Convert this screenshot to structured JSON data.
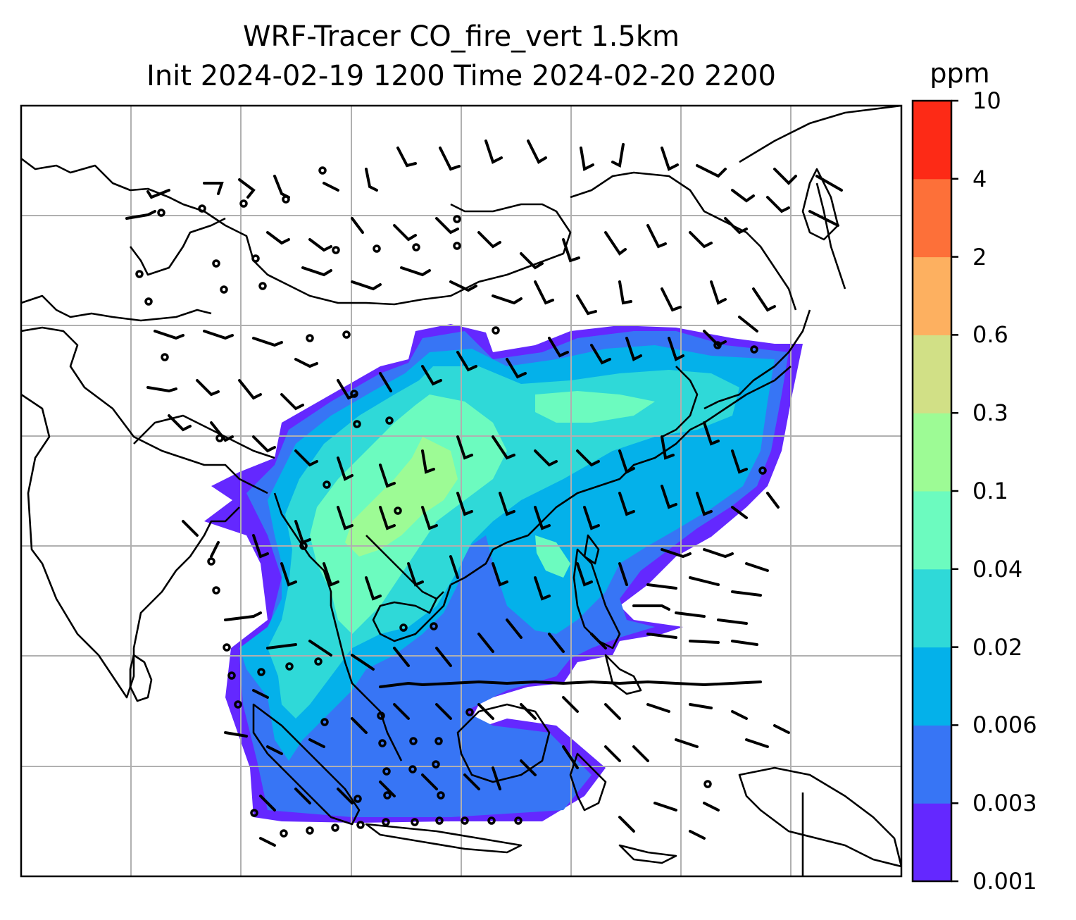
{
  "title": {
    "line1": "WRF-Tracer CO_fire_vert 1.5km",
    "line2": "Init 2024-02-19 1200 Time 2024-02-20 2200"
  },
  "colorbar": {
    "unit": "ppm",
    "levels": [
      "0.001",
      "0.003",
      "0.006",
      "0.02",
      "0.04",
      "0.1",
      "0.3",
      "0.6",
      "2",
      "4",
      "10"
    ],
    "colors": [
      "#6428ff",
      "#3775f5",
      "#04b1ea",
      "#2fd9d8",
      "#6cfbbf",
      "#9dfb95",
      "#d1e086",
      "#fdb060",
      "#fd7039",
      "#fd2a16"
    ]
  },
  "map": {
    "background": "#ffffff",
    "coastline_color": "#000000",
    "gridline_color": "#b0b0b0"
  }
}
